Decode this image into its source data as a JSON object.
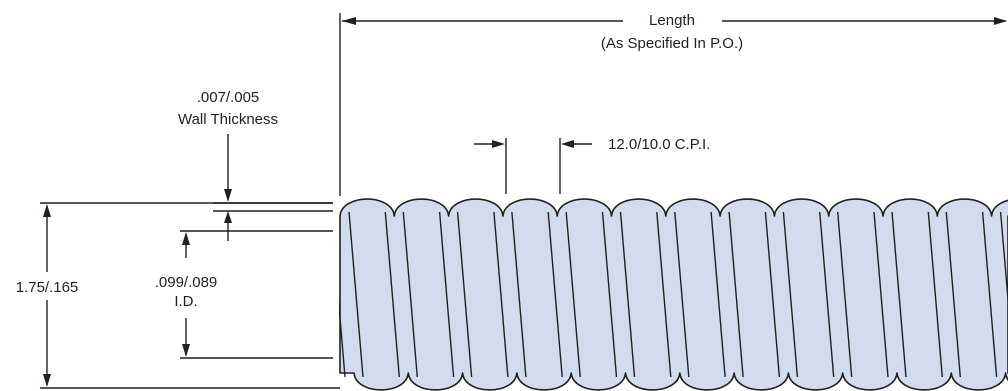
{
  "length": {
    "label": "Length",
    "note": "(As Specified In P.O.)"
  },
  "wall_thickness": {
    "value": ".007/.005",
    "label": "Wall Thickness"
  },
  "pitch": {
    "value": "12.0/10.0 C.P.I."
  },
  "outer_diameter": {
    "value": "1.75/.165"
  },
  "inner_diameter": {
    "value": ".099/.089",
    "label": "I.D."
  },
  "colors": {
    "tube_fill": "#d2dcee",
    "line": "#231f20",
    "background": "#ffffff"
  }
}
